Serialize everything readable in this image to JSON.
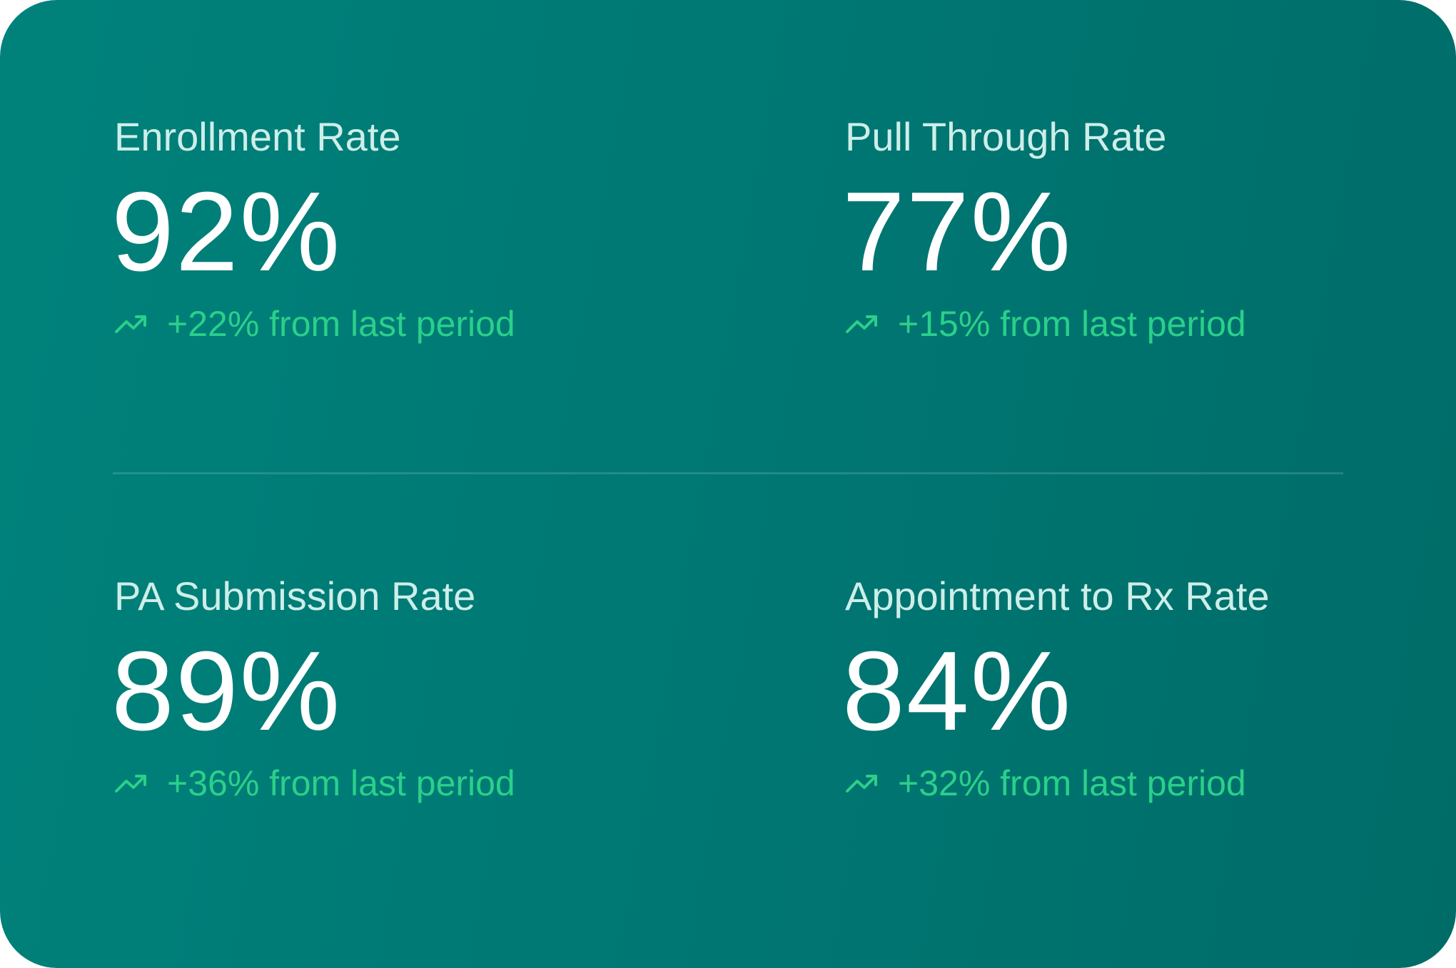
{
  "metrics": [
    {
      "label": "Enrollment Rate",
      "value": "92%",
      "change": "+22% from last period"
    },
    {
      "label": "Pull Through Rate",
      "value": "77%",
      "change": "+15% from last period"
    },
    {
      "label": "PA Submission Rate",
      "value": "89%",
      "change": "+36% from last period"
    },
    {
      "label": "Appointment to Rx Rate",
      "value": "84%",
      "change": "+32% from last period"
    }
  ],
  "icons": {
    "trend": "trending-up-icon"
  },
  "colors": {
    "card_bg_start": "#00827b",
    "card_bg_end": "#006c68",
    "label": "#cdeee9",
    "value": "#ffffff",
    "positive_change": "#2ad08a"
  }
}
